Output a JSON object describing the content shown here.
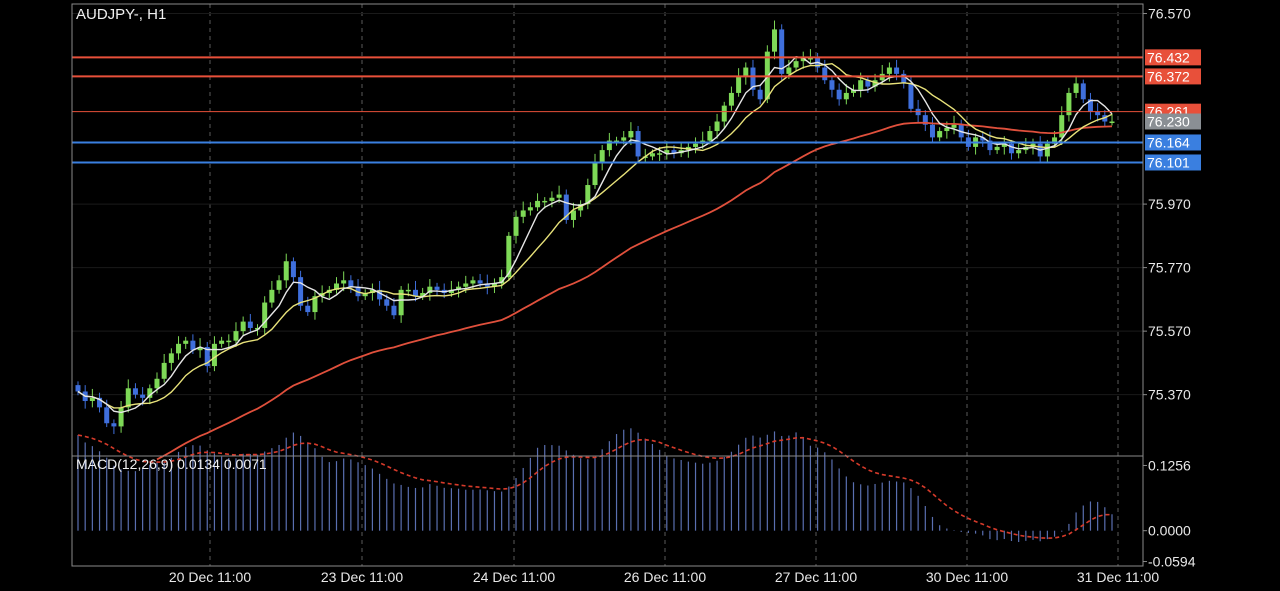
{
  "header": {
    "symbol_label": "AUDJPY-, H1"
  },
  "macd_panel": {
    "label": "MACD(12,26,9) 0.0134 0.0071"
  },
  "colors": {
    "background": "#000000",
    "grid": "#5a5a5a",
    "bull_candle": "#7ed957",
    "bear_candle": "#3f6fdc",
    "ma_fast": "#e6e6e6",
    "ma_mid": "#e8e27a",
    "ma_slow": "#e0503c",
    "resistance_line": "#e8503a",
    "support_line": "#3a7fe0",
    "current_price_tag": "#8a8f94",
    "macd_hist": "#5a6fb0",
    "macd_signal": "#d63a2a"
  },
  "chart_data": {
    "type": "candlestick",
    "title": "AUDJPY-, H1",
    "price_axis": {
      "ticks": [
        "76.570",
        "75.970",
        "75.770",
        "75.570",
        "75.370"
      ],
      "range": [
        75.18,
        76.6
      ]
    },
    "time_axis": {
      "ticks": [
        "20 Dec 11:00",
        "23 Dec 11:00",
        "24 Dec 11:00",
        "26 Dec 11:00",
        "27 Dec 11:00",
        "30 Dec 11:00",
        "31 Dec 11:00"
      ]
    },
    "horizontal_levels": [
      {
        "label": "76.432",
        "value": 76.432,
        "kind": "resistance"
      },
      {
        "label": "76.372",
        "value": 76.372,
        "kind": "resistance"
      },
      {
        "label": "76.261",
        "value": 76.261,
        "kind": "resistance"
      },
      {
        "label": "76.164",
        "value": 76.164,
        "kind": "support"
      },
      {
        "label": "76.101",
        "value": 76.101,
        "kind": "support"
      }
    ],
    "current_price": {
      "label": "76.230",
      "value": 76.23
    },
    "closes": [
      75.38,
      75.35,
      75.36,
      75.33,
      75.28,
      75.27,
      75.33,
      75.39,
      75.37,
      75.36,
      75.39,
      75.42,
      75.47,
      75.5,
      75.53,
      75.54,
      75.51,
      75.52,
      75.46,
      75.53,
      75.54,
      75.54,
      75.57,
      75.6,
      75.58,
      75.58,
      75.66,
      75.7,
      75.73,
      75.79,
      75.74,
      75.65,
      75.63,
      75.68,
      75.69,
      75.7,
      75.72,
      75.73,
      75.71,
      75.68,
      75.69,
      75.7,
      75.67,
      75.65,
      75.62,
      75.7,
      75.7,
      75.68,
      75.69,
      75.71,
      75.7,
      75.69,
      75.7,
      75.71,
      75.72,
      75.73,
      75.72,
      75.71,
      75.72,
      75.74,
      75.87,
      75.93,
      75.95,
      75.96,
      75.98,
      75.98,
      75.99,
      76.0,
      75.92,
      75.95,
      75.97,
      76.03,
      76.1,
      76.14,
      76.17,
      76.17,
      76.18,
      76.2,
      76.12,
      76.12,
      76.13,
      76.13,
      76.14,
      76.13,
      76.14,
      76.15,
      76.16,
      76.17,
      76.2,
      76.23,
      76.28,
      76.32,
      76.37,
      76.4,
      76.33,
      76.3,
      76.45,
      76.52,
      76.38,
      76.4,
      76.42,
      76.43,
      76.43,
      76.4,
      76.36,
      76.33,
      76.3,
      76.32,
      76.33,
      76.36,
      76.34,
      76.36,
      76.38,
      76.4,
      76.38,
      76.35,
      76.27,
      76.25,
      76.22,
      76.18,
      76.2,
      76.21,
      76.22,
      76.18,
      76.15,
      76.18,
      76.17,
      76.14,
      76.15,
      76.16,
      76.13,
      76.14,
      76.15,
      76.16,
      76.12,
      76.16,
      76.18,
      76.25,
      76.32,
      76.35,
      76.3,
      76.26,
      76.25,
      76.23,
      76.23
    ],
    "macd": {
      "params": "12,26,9",
      "main": 0.0134,
      "signal": 0.0071,
      "axis_ticks": [
        "0.1256",
        "0.0000",
        "-0.0594"
      ],
      "range": [
        -0.068,
        0.14
      ]
    }
  }
}
